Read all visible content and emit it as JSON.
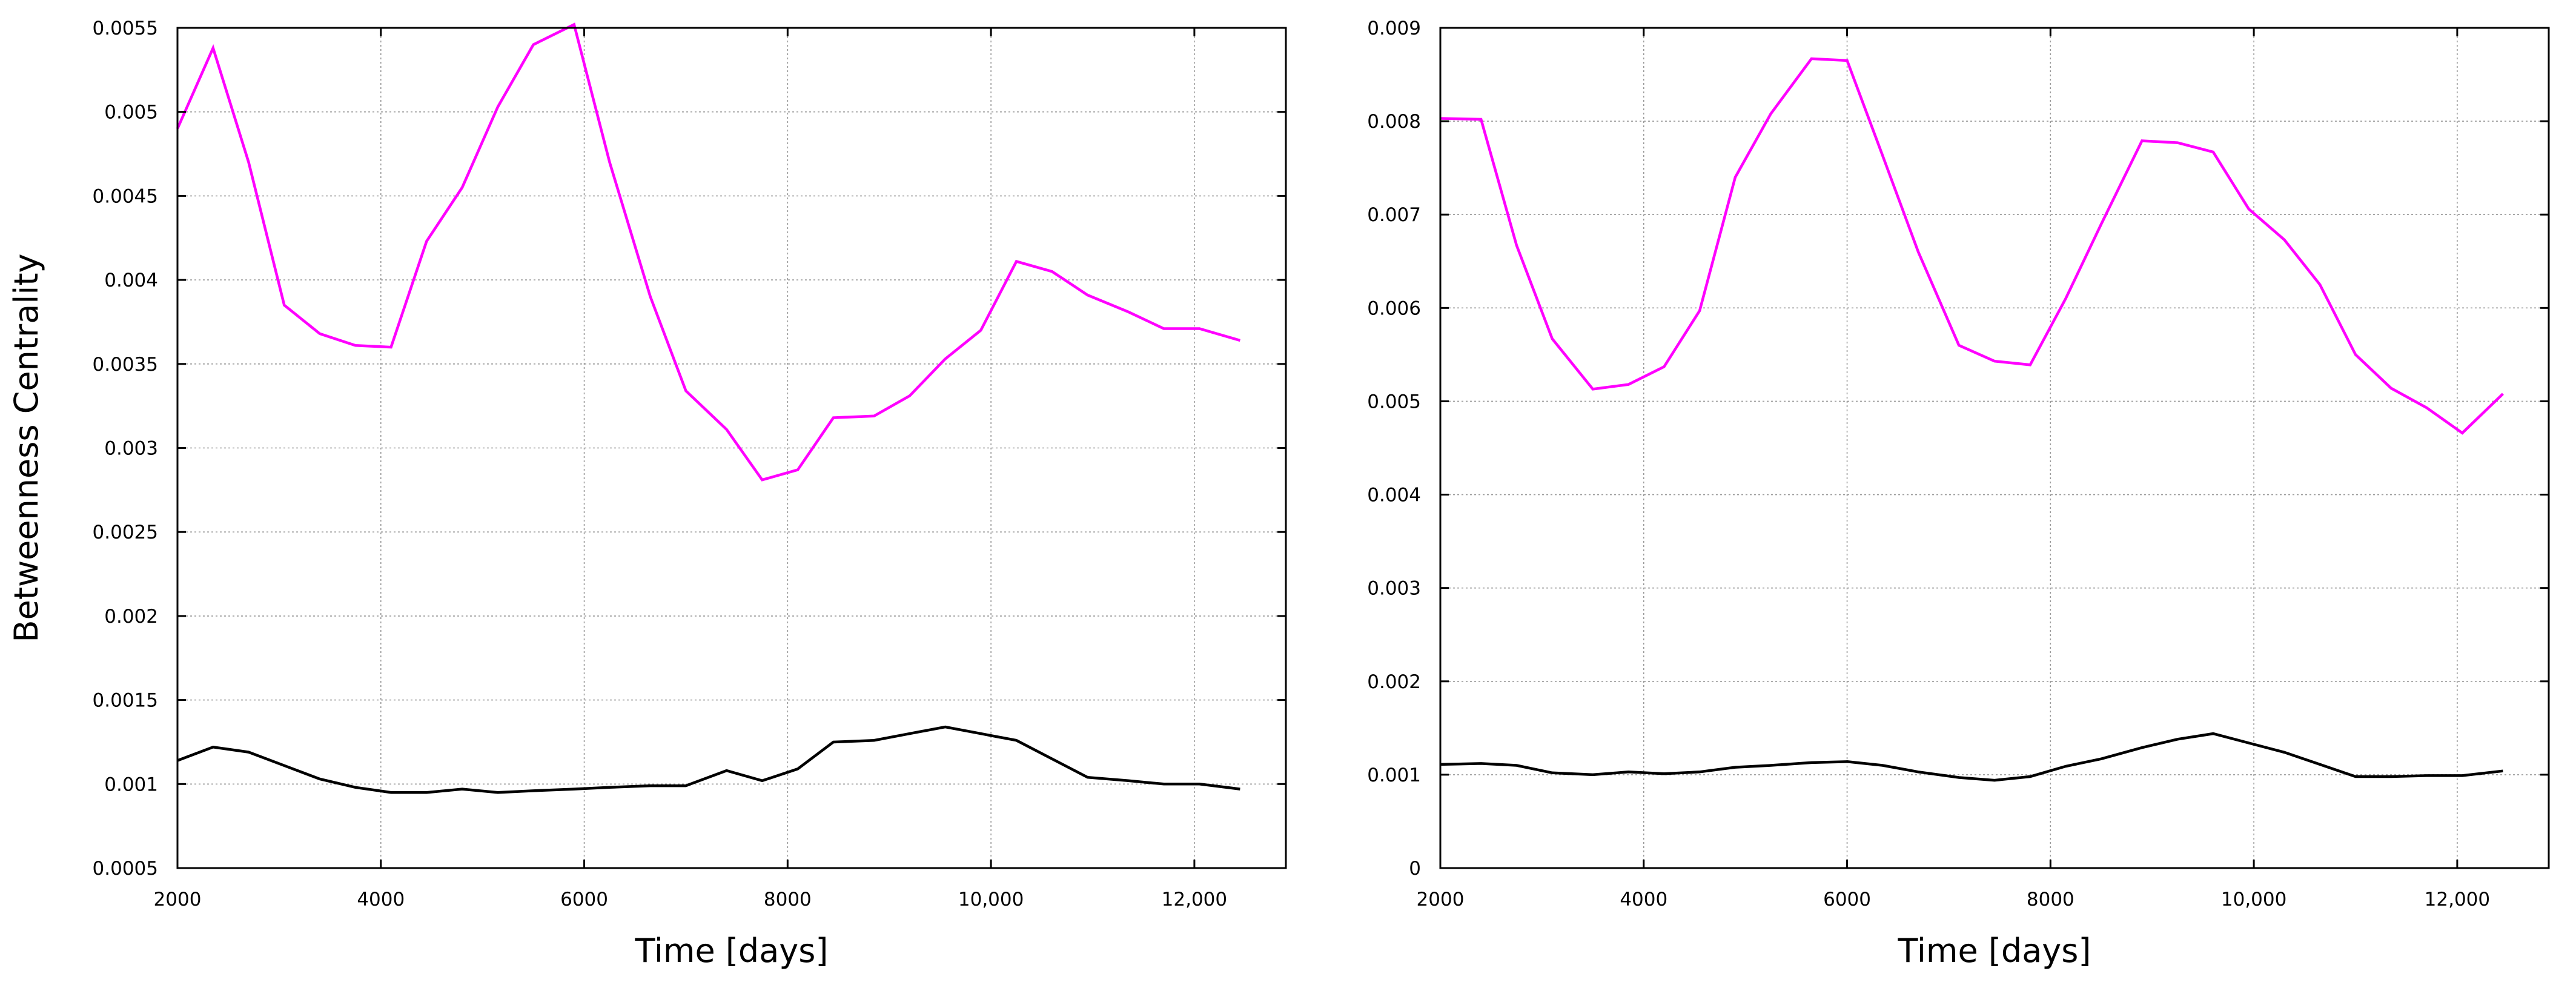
{
  "chart_data": [
    {
      "type": "line",
      "xlabel": "Time [days]",
      "ylabel": "Betweenness Centrality",
      "xlim": [
        2000,
        12900
      ],
      "ylim": [
        0.0005,
        0.0055
      ],
      "xticks": [
        2000,
        4000,
        6000,
        8000,
        10000,
        12000
      ],
      "xtick_labels": [
        "2000",
        "4000",
        "6000",
        "8000",
        "10,000",
        "12,000"
      ],
      "yticks": [
        0.0005,
        0.001,
        0.0015,
        0.002,
        0.0025,
        0.003,
        0.0035,
        0.004,
        0.0045,
        0.005,
        0.0055
      ],
      "ytick_labels": [
        "0.0005",
        "0.001",
        "0.0015",
        "0.002",
        "0.0025",
        "0.003",
        "0.0035",
        "0.004",
        "0.0045",
        "0.005",
        "0.0055"
      ],
      "grid": true,
      "series": [
        {
          "color": "#ff00ff",
          "x": [
            2000,
            2350,
            2700,
            3050,
            3400,
            3750,
            4100,
            4450,
            4800,
            5150,
            5500,
            5900,
            6250,
            6650,
            7000,
            7400,
            7750,
            8100,
            8450,
            8850,
            9200,
            9550,
            9900,
            10250,
            10600,
            10950,
            11350,
            11700,
            12050,
            12450
          ],
          "y": [
            0.0049,
            0.00538,
            0.0047,
            0.00385,
            0.00368,
            0.00361,
            0.0036,
            0.00423,
            0.00455,
            0.00503,
            0.0054,
            0.00552,
            0.0047,
            0.0039,
            0.00334,
            0.00311,
            0.00281,
            0.00287,
            0.00318,
            0.00319,
            0.00331,
            0.00353,
            0.0037,
            0.00411,
            0.00405,
            0.00391,
            0.00381,
            0.00371,
            0.00371,
            0.00364
          ]
        },
        {
          "color": "#000000",
          "x": [
            2000,
            2350,
            2700,
            3050,
            3400,
            3750,
            4100,
            4450,
            4800,
            5150,
            5500,
            5900,
            6250,
            6650,
            7000,
            7400,
            7750,
            8100,
            8450,
            8850,
            9200,
            9550,
            9900,
            10250,
            10600,
            10950,
            11350,
            11700,
            12050,
            12450
          ],
          "y": [
            0.00114,
            0.00122,
            0.00119,
            0.00111,
            0.00103,
            0.00098,
            0.00095,
            0.00095,
            0.00097,
            0.00095,
            0.00096,
            0.00097,
            0.00098,
            0.00099,
            0.00099,
            0.00108,
            0.00102,
            0.00109,
            0.00125,
            0.00126,
            0.0013,
            0.00134,
            0.0013,
            0.00126,
            0.00115,
            0.00104,
            0.00102,
            0.001,
            0.001,
            0.00097
          ]
        }
      ]
    },
    {
      "type": "line",
      "xlabel": "Time [days]",
      "ylabel": "",
      "xlim": [
        2000,
        12900
      ],
      "ylim": [
        0,
        0.009
      ],
      "xticks": [
        2000,
        4000,
        6000,
        8000,
        10000,
        12000
      ],
      "xtick_labels": [
        "2000",
        "4000",
        "6000",
        "8000",
        "10,000",
        "12,000"
      ],
      "yticks": [
        0,
        0.001,
        0.002,
        0.003,
        0.004,
        0.005,
        0.006,
        0.007,
        0.008,
        0.009
      ],
      "ytick_labels": [
        "0",
        "0.001",
        "0.002",
        "0.003",
        "0.004",
        "0.005",
        "0.006",
        "0.007",
        "0.008",
        "0.009"
      ],
      "grid": true,
      "series": [
        {
          "color": "#ff00ff",
          "x": [
            2000,
            2400,
            2750,
            3100,
            3500,
            3850,
            4200,
            4550,
            4900,
            5250,
            5650,
            6000,
            6350,
            6700,
            7100,
            7450,
            7800,
            8150,
            8500,
            8900,
            9250,
            9600,
            9950,
            10300,
            10650,
            11000,
            11350,
            11700,
            12050,
            12450
          ],
          "y": [
            0.00803,
            0.00802,
            0.00667,
            0.00567,
            0.00513,
            0.00518,
            0.00537,
            0.00597,
            0.0074,
            0.00808,
            0.00867,
            0.00865,
            0.00763,
            0.0066,
            0.0056,
            0.00543,
            0.00539,
            0.0061,
            0.0069,
            0.00779,
            0.00777,
            0.00767,
            0.00706,
            0.00673,
            0.00625,
            0.0055,
            0.00514,
            0.00493,
            0.00466,
            0.00508
          ]
        },
        {
          "color": "#000000",
          "x": [
            2000,
            2400,
            2750,
            3100,
            3500,
            3850,
            4200,
            4550,
            4900,
            5250,
            5650,
            6000,
            6350,
            6700,
            7100,
            7450,
            7800,
            8150,
            8500,
            8900,
            9250,
            9600,
            9950,
            10300,
            10650,
            11000,
            11350,
            11700,
            12050,
            12450
          ],
          "y": [
            0.00111,
            0.00112,
            0.0011,
            0.00102,
            0.001,
            0.00103,
            0.00101,
            0.00103,
            0.00108,
            0.0011,
            0.00113,
            0.00114,
            0.0011,
            0.00103,
            0.00097,
            0.00094,
            0.00098,
            0.00109,
            0.00117,
            0.00129,
            0.00138,
            0.00144,
            0.00134,
            0.00124,
            0.00111,
            0.00098,
            0.00098,
            0.00099,
            0.00099,
            0.00104
          ]
        }
      ]
    }
  ]
}
